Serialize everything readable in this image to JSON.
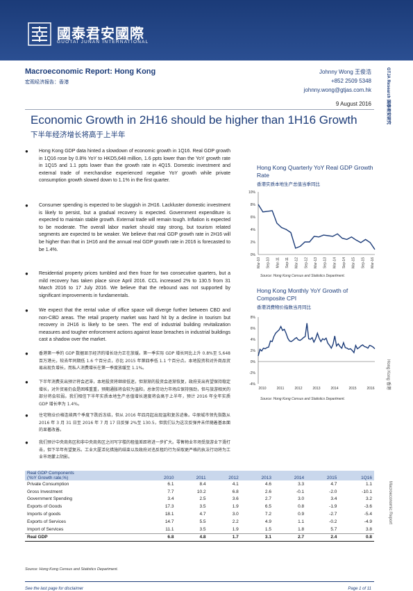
{
  "brand": {
    "name_cn": "國泰君安國際",
    "name_en": "GUOTAI JUNAN INTERNATIONAL"
  },
  "report": {
    "title": "Macroeconomic Report: Hong Kong",
    "title_cn": "宏观经济报告：香港",
    "author_name": "Johnny Wong  王俊浩",
    "author_phone": "+852 2509 5348",
    "author_email": "johnny.wong@gtjas.com.hk",
    "date": "9  August  2016",
    "headline": "Economic Growth in 2H16 should be higher than 1H16 Growth",
    "headline_cn": "下半年经济增长将高于上半年"
  },
  "bullets": [
    "Hong Kong GDP data hinted a slowdown of economic growth in 1Q16. Real GDP growth in 1Q16 rose by 0.8% YoY to HKD5,648 million, 1.6 ppts lower than the YoY growth rate in 1Q15 and 1.1 ppts lower than the growth rate in 4Q15. Domestic investment and external trade of merchandise experienced negative YoY growth while private consumption growth slowed down to 1.1% in the first quarter.",
    "Consumer spending is expected to be sluggish in 2H16. Lackluster domestic investment is likely to persist, but a gradual recovery is expected. Government expenditure is expected to maintain stable growth. External trade will remain tough. Inflation is expected to be moderate. The overall labor market should stay strong, but tourism related segments are expected to be weaker. We believe that real GDP growth rate in 2H16 will be higher than that in 1H16 and the annual real GDP growth rate in 2016 is forecasted to be 1.4%.",
    "Residential property prices tumbled and then froze for two consecutive quarters, but a mild recovery has taken place since April 2016. CCL increased 2% to 130.5 from 31 March 2016 to 17 July 2016. We believe that the rebound was not supported by significant improvements in fundamentals.",
    "We expect that the rental value of office space will diverge further between CBD and non-CBD areas. The retail property market was hard hit by a decline in tourism but recovery in 2H16 is likely to be seen.  The end of industrial building revitalization measures and tougher enforcement actions against lease breaches in industrial buildings cast a shadow over the market.",
    "香港第一季的 GDP 数据显示经济的增长动力正在放缓。第一季实际 GDP 增长同比上升 0.8%至 5,648 百万港元，较去年同期低 1.6 个百分点，亦比 2015 年第四季低 1.1 个百分点。本地投资和对外商品贸易出现负增长，而私人消费增长在第一季度放缓至 1.1%。",
    "下半年消费支出预计将会迟滞，本地投资将继续低迷，但渐渐的投资会逐渐恢复，政府支出有望保持稳定增长，对外贸易仍会是困难重重，预期通胀将会较为温和，总体劳动力市场应保持强劲，但与旅游相关的部分将会较弱。我们相信下半年实质本地生产总值增长速度将会高于上半年，预计 2016 年全年实质 GDP 增长率为 1.4%。",
    "住宅物业价格连续两个季度下跌后冻结，但从 2016 年四月起出现温和复苏迹象。中原城市领先指数从 2016 年 3 月 31 日至 2016 年 7 月 17 日反弹 2%至 130.5，但我们认为这次反弹并未伴随着基本面的显著改善。",
    "我们预计中央商务区和非中央商务区之间写字楼的租值差距将进一步扩大。零售物业市场受旅游业下滑打击，但下半年有望复苏。工业大厦活化措施的结束以及政府对违反租约行为采取更严格的执法行动将为工业市场蒙上阴影。"
  ],
  "charts": {
    "gdp": {
      "title": "Hong Kong Quarterly YoY Real GDP Growth Rate",
      "title_cn": "香港实质本地生产总值当季同比",
      "source": "Source: Hong Kong Census and Statistics Department.",
      "chart_data": {
        "type": "line",
        "x_ticks": [
          "Mar-10",
          "Sep-10",
          "Mar-11",
          "Sep-11",
          "Mar-12",
          "Sep-12",
          "Mar-13",
          "Sep-13",
          "Mar-14",
          "Sep-14",
          "Mar-15",
          "Sep-15",
          "Mar-16"
        ],
        "values": [
          8.0,
          6.8,
          6.9,
          7.0,
          5.0,
          4.3,
          4.0,
          3.5,
          1.0,
          1.3,
          2.0,
          2.0,
          2.9,
          2.8,
          3.1,
          3.0,
          2.9,
          3.3,
          2.6,
          2.4,
          2.8,
          2.3,
          1.9,
          2.4,
          1.9,
          0.8
        ],
        "yticks": [
          "0%",
          "2%",
          "4%",
          "6%",
          "8%",
          "10%"
        ],
        "ylim": [
          0,
          10
        ],
        "color": "#1b3b78"
      }
    },
    "cpi": {
      "title": "Hong Kong Monthly YoY Growth of Composite CPI",
      "title_cn": "香港消费物价指数当月同比",
      "source": "Source: Hong Kong Census and Statistics Department.",
      "chart_data": {
        "type": "line",
        "x_ticks": [
          "2010",
          "2011",
          "2012",
          "2013",
          "2014",
          "2015",
          "2016"
        ],
        "values": [
          1.0,
          2.2,
          1.9,
          2.4,
          2.3,
          2.5,
          2.6,
          3.7,
          3.6,
          4.5,
          5.1,
          5.4,
          5.7,
          6.3,
          5.6,
          5.8,
          5.1,
          4.2,
          3.7,
          3.6,
          3.8,
          4.1,
          4.3,
          3.9,
          3.8,
          4.0,
          4.3,
          4.5,
          6.9,
          4.1,
          4.0,
          4.3,
          3.5,
          4.1,
          5.1,
          4.2,
          3.6,
          4.1,
          3.9,
          4.2,
          3.3,
          2.9,
          2.4,
          3.1,
          4.6,
          2.8,
          3.2,
          2.7,
          2.4,
          3.4,
          2.5,
          2.4,
          2.2,
          2.3,
          2.0,
          1.6,
          2.9,
          2.3,
          2.5,
          2.8,
          3.0,
          2.7,
          2.6,
          2.4,
          2.9,
          2.8,
          2.6,
          2.3
        ],
        "yticks": [
          "-4%",
          "-2%",
          "0%",
          "2%",
          "4%",
          "6%",
          "8%"
        ],
        "ylim": [
          -4,
          8
        ],
        "color": "#1b3b78"
      }
    }
  },
  "table": {
    "header_line1": "Real GDP Components",
    "header_line2": "(YoY Growth rate,%)",
    "columns": [
      "2010",
      "2011",
      "2012",
      "2013",
      "2014",
      "2015",
      "1Q16"
    ],
    "rows": [
      {
        "label": "Private Consumption",
        "values": [
          "6.1",
          "8.4",
          "4.1",
          "4.6",
          "3.3",
          "4.7",
          "1.1"
        ]
      },
      {
        "label": "Gross Investment",
        "values": [
          "7.7",
          "10.2",
          "6.8",
          "2.6",
          "-0.1",
          "-2.0",
          "-10.1"
        ]
      },
      {
        "label": "Government Spending",
        "values": [
          "3.4",
          "2.5",
          "3.6",
          "2.7",
          "3.0",
          "3.4",
          "3.2"
        ]
      },
      {
        "label": "Exports of Goods",
        "values": [
          "17.3",
          "3.5",
          "1.9",
          "6.5",
          "0.8",
          "-1.9",
          "-3.6"
        ]
      },
      {
        "label": "Imports of goods",
        "values": [
          "18.1",
          "4.7",
          "3.0",
          "7.2",
          "0.9",
          "-2.7",
          "-5.4"
        ]
      },
      {
        "label": "Exports of Services",
        "values": [
          "14.7",
          "5.5",
          "2.2",
          "4.9",
          "1.1",
          "-0.2",
          "-4.9"
        ]
      },
      {
        "label": "Import of Services",
        "values": [
          "11.1",
          "3.5",
          "1.9",
          "1.5",
          "1.8",
          "5.7",
          "3.8"
        ]
      },
      {
        "label": "Real GDP",
        "values": [
          "6.8",
          "4.8",
          "1.7",
          "3.1",
          "2.7",
          "2.4",
          "0.8"
        ]
      }
    ],
    "source": "Source: Hong Kong Census and Statistics Department."
  },
  "side": {
    "top": "GTJA Research  国泰君安研究",
    "mid": "Hong Kong  香港",
    "bottom": "Macroeconomic Report"
  },
  "footer": {
    "disclaimer": "See the last page for disclaimer",
    "page": "Page 1 of 11"
  },
  "colors": {
    "brand_navy": "#1b3b78",
    "table_header": "#c9d7ec"
  }
}
